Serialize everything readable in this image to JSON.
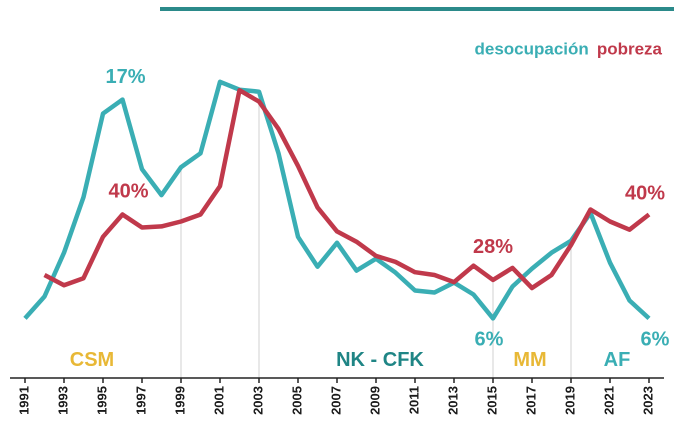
{
  "chart_data": {
    "type": "line",
    "x": [
      1991,
      1992,
      1993,
      1994,
      1995,
      1996,
      1997,
      1998,
      1999,
      2000,
      2001,
      2002,
      2003,
      2004,
      2005,
      2006,
      2007,
      2008,
      2009,
      2010,
      2011,
      2012,
      2013,
      2014,
      2015,
      2016,
      2017,
      2018,
      2019,
      2020,
      2021,
      2022,
      2023
    ],
    "xlim": [
      1991,
      2023
    ],
    "xticks": [
      1991,
      1993,
      1995,
      1997,
      1999,
      2001,
      2003,
      2005,
      2007,
      2009,
      2011,
      2013,
      2015,
      2017,
      2019,
      2021,
      2023
    ],
    "ylim": [
      3,
      20
    ],
    "y2lim": [
      10,
      72
    ],
    "legend": "top-right",
    "series": [
      {
        "name": "desocupación",
        "color": "#3aaeb4",
        "axis": "y",
        "values": [
          6.0,
          7.1,
          9.3,
          12.1,
          16.3,
          17,
          13.5,
          12.2,
          13.6,
          14.3,
          17.9,
          17.5,
          17.4,
          14.3,
          10.1,
          8.6,
          9.8,
          8.4,
          9.0,
          8.3,
          7.4,
          7.3,
          7.8,
          7.2,
          6,
          7.6,
          8.5,
          9.3,
          9.9,
          11.3,
          8.8,
          6.9,
          6
        ],
        "value_labels": [
          null,
          null,
          null,
          null,
          null,
          "17%",
          null,
          null,
          null,
          null,
          null,
          null,
          null,
          null,
          null,
          null,
          null,
          null,
          null,
          null,
          null,
          null,
          null,
          null,
          "6%",
          null,
          null,
          null,
          null,
          null,
          null,
          null,
          "6%"
        ]
      },
      {
        "name": "pobreza",
        "color": "#c0394b",
        "axis": "y2",
        "values": [
          null,
          28.9,
          27.0,
          28.3,
          35.9,
          40,
          37.6,
          37.8,
          38.7,
          40.0,
          45.2,
          62.8,
          60.7,
          55.7,
          48.9,
          41.3,
          36.9,
          35.0,
          32.4,
          31.3,
          29.4,
          28.9,
          27.6,
          30.6,
          28,
          30.2,
          26.5,
          28.9,
          34.4,
          40.9,
          38.7,
          37.2,
          40
        ],
        "value_labels": [
          null,
          null,
          null,
          null,
          null,
          "40%",
          null,
          null,
          null,
          null,
          null,
          null,
          null,
          null,
          null,
          null,
          null,
          null,
          null,
          null,
          null,
          null,
          null,
          null,
          "28%",
          null,
          null,
          null,
          null,
          null,
          null,
          null,
          "40%"
        ]
      }
    ],
    "annotations": [
      "CSM",
      "NK - CFK",
      "MM",
      "AF"
    ]
  }
}
